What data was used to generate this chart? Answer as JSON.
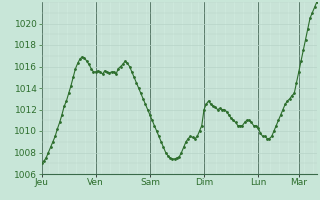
{
  "background_color": "#c8e6d8",
  "plot_bg_color": "#cde8dc",
  "line_color": "#2d6e2d",
  "marker": ".",
  "markersize": 2.0,
  "linewidth": 0.8,
  "ylim": [
    1006,
    1022
  ],
  "yticks": [
    1006,
    1008,
    1010,
    1012,
    1014,
    1016,
    1018,
    1020
  ],
  "day_labels": [
    "Jeu",
    "Ven",
    "Sam",
    "Dim",
    "Lun",
    "Mar"
  ],
  "day_positions": [
    0,
    24,
    48,
    72,
    96,
    114
  ],
  "major_vline_color": "#5a7a6a",
  "grid_color": "#b8d4c8",
  "tick_color": "#2d6e2d",
  "xlabel_fontsize": 6.5,
  "ylabel_fontsize": 6.5,
  "values": [
    1007.0,
    1007.2,
    1007.5,
    1008.0,
    1008.5,
    1009.0,
    1009.5,
    1010.2,
    1010.8,
    1011.5,
    1012.3,
    1012.8,
    1013.5,
    1014.2,
    1015.0,
    1015.8,
    1016.3,
    1016.7,
    1016.9,
    1016.8,
    1016.5,
    1016.2,
    1015.8,
    1015.5,
    1015.5,
    1015.6,
    1015.5,
    1015.3,
    1015.6,
    1015.5,
    1015.4,
    1015.5,
    1015.5,
    1015.3,
    1015.8,
    1016.0,
    1016.2,
    1016.5,
    1016.3,
    1016.0,
    1015.5,
    1015.0,
    1014.5,
    1014.0,
    1013.5,
    1013.0,
    1012.5,
    1012.0,
    1011.5,
    1011.0,
    1010.5,
    1010.0,
    1009.5,
    1009.0,
    1008.5,
    1008.0,
    1007.7,
    1007.5,
    1007.4,
    1007.4,
    1007.5,
    1007.6,
    1008.0,
    1008.5,
    1009.0,
    1009.3,
    1009.5,
    1009.4,
    1009.3,
    1009.5,
    1010.0,
    1010.5,
    1012.0,
    1012.5,
    1012.8,
    1012.5,
    1012.3,
    1012.2,
    1012.0,
    1012.1,
    1012.0,
    1012.0,
    1011.8,
    1011.5,
    1011.2,
    1011.0,
    1010.8,
    1010.5,
    1010.5,
    1010.5,
    1010.8,
    1011.0,
    1011.0,
    1010.8,
    1010.5,
    1010.5,
    1010.3,
    1009.8,
    1009.5,
    1009.5,
    1009.3,
    1009.3,
    1009.5,
    1010.0,
    1010.5,
    1011.0,
    1011.5,
    1012.0,
    1012.5,
    1012.8,
    1013.0,
    1013.3,
    1013.5,
    1014.5,
    1015.5,
    1016.5,
    1017.5,
    1018.5,
    1019.5,
    1020.5,
    1021.0,
    1021.5,
    1022.0
  ]
}
